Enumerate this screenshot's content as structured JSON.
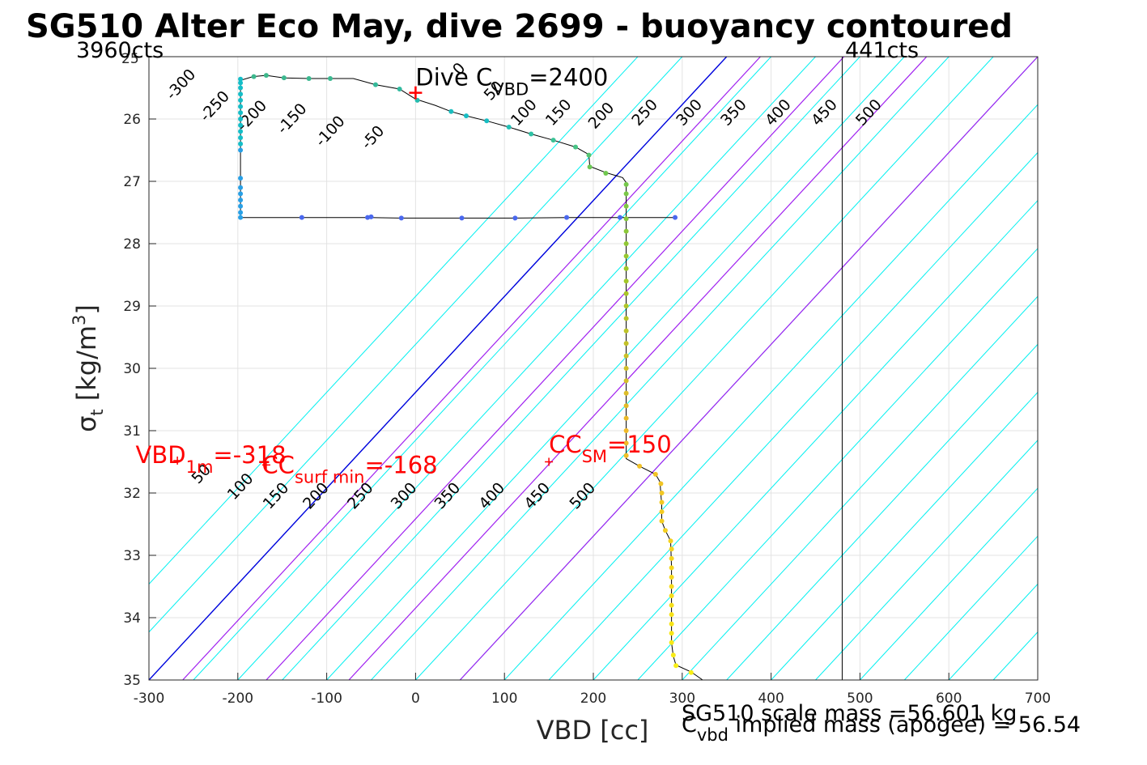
{
  "chart_data": {
    "type": "scatter",
    "title": "SG510 Alter Eco May, dive 2699 - buoyancy contoured",
    "xlabel": "VBD [cc]",
    "ylabel_main": "σ",
    "ylabel_sub": "t",
    "ylabel_units": " [kg/m",
    "ylabel_sup": "3",
    "ylabel_close": "]",
    "xlim": [
      -300,
      700
    ],
    "ylim": [
      35,
      25
    ],
    "y_reversed": true,
    "grid": true,
    "x_ticks": [
      -300,
      -200,
      -100,
      0,
      100,
      200,
      300,
      400,
      500,
      600,
      700
    ],
    "y_ticks": [
      26,
      27,
      28,
      29,
      30,
      31,
      32,
      33,
      34,
      35
    ],
    "y_tick_labels": [
      "26",
      "27",
      "28",
      "29",
      "30",
      "31",
      "32",
      "33",
      "34",
      "35"
    ],
    "y_top_tick_label": "25",
    "contours": {
      "slope_cc_per_unit": 65,
      "anchor_sigma": 35,
      "lines": [
        {
          "v": -400,
          "x_at_anchor": -400
        },
        {
          "v": -350,
          "x_at_anchor": -350
        },
        {
          "v": -300,
          "x_at_anchor": -300
        },
        {
          "v": -250,
          "x_at_anchor": -250
        },
        {
          "v": -200,
          "x_at_anchor": -200
        },
        {
          "v": -150,
          "x_at_anchor": -150
        },
        {
          "v": -100,
          "x_at_anchor": -100
        },
        {
          "v": -50,
          "x_at_anchor": -50
        },
        {
          "v": 0,
          "x_at_anchor": 0
        },
        {
          "v": 50,
          "x_at_anchor": 50
        },
        {
          "v": 100,
          "x_at_anchor": 100
        },
        {
          "v": 150,
          "x_at_anchor": 150
        },
        {
          "v": 200,
          "x_at_anchor": 200
        },
        {
          "v": 250,
          "x_at_anchor": 250
        },
        {
          "v": 300,
          "x_at_anchor": 300
        },
        {
          "v": 350,
          "x_at_anchor": 350
        },
        {
          "v": 400,
          "x_at_anchor": 400
        },
        {
          "v": 450,
          "x_at_anchor": 450
        },
        {
          "v": 500,
          "x_at_anchor": 500
        },
        {
          "v": 550,
          "x_at_anchor": 550
        },
        {
          "v": 600,
          "x_at_anchor": 600
        },
        {
          "v": 650,
          "x_at_anchor": 650
        },
        {
          "v": 700,
          "x_at_anchor": 700
        },
        {
          "v": 750,
          "x_at_anchor": 750
        },
        {
          "v": 800,
          "x_at_anchor": 800
        },
        {
          "v": 850,
          "x_at_anchor": 850
        },
        {
          "v": 900,
          "x_at_anchor": 900
        },
        {
          "v": 950,
          "x_at_anchor": 950
        },
        {
          "v": 1000,
          "x_at_anchor": 1000
        },
        {
          "v": 1050,
          "x_at_anchor": 1050
        },
        {
          "v": 1100,
          "x_at_anchor": 1100
        },
        {
          "v": 1150,
          "x_at_anchor": 1150
        },
        {
          "v": 1200,
          "x_at_anchor": 1200
        }
      ],
      "colors": {
        "normal": "#00f0f0",
        "zero": "#0000dd",
        "highlight": "#a020f0"
      },
      "highlight_x_at_anchor": [
        -262,
        -168,
        -75,
        50
      ]
    },
    "upper_contour_labels": [
      {
        "text": "-300",
        "x": -260,
        "y": 25.5
      },
      {
        "text": "-250",
        "x": -222,
        "y": 25.85
      },
      {
        "text": "-200",
        "x": -180,
        "y": 26.0
      },
      {
        "text": "-150",
        "x": -135,
        "y": 26.05
      },
      {
        "text": "-100",
        "x": -92,
        "y": 26.25
      },
      {
        "text": "-50",
        "x": -44,
        "y": 26.35
      },
      {
        "text": "0",
        "x": 53,
        "y": 25.25
      },
      {
        "text": "50",
        "x": 92,
        "y": 25.6
      },
      {
        "text": "100",
        "x": 126,
        "y": 25.95
      },
      {
        "text": "150",
        "x": 165,
        "y": 25.95
      },
      {
        "text": "200",
        "x": 213,
        "y": 26.0
      },
      {
        "text": "250",
        "x": 262,
        "y": 25.95
      },
      {
        "text": "300",
        "x": 312,
        "y": 25.95
      },
      {
        "text": "350",
        "x": 362,
        "y": 25.95
      },
      {
        "text": "400",
        "x": 412,
        "y": 25.95
      },
      {
        "text": "450",
        "x": 464,
        "y": 25.95
      },
      {
        "text": "500",
        "x": 514,
        "y": 25.95
      }
    ],
    "lower_contour_labels": [
      {
        "text": "50",
        "x": -237,
        "y": 31.75
      },
      {
        "text": "100",
        "x": -193,
        "y": 31.95
      },
      {
        "text": "150",
        "x": -153,
        "y": 32.1
      },
      {
        "text": "200",
        "x": -108,
        "y": 32.1
      },
      {
        "text": "250",
        "x": -58,
        "y": 32.1
      },
      {
        "text": "300",
        "x": -9,
        "y": 32.1
      },
      {
        "text": "350",
        "x": 40,
        "y": 32.1
      },
      {
        "text": "400",
        "x": 90,
        "y": 32.1
      },
      {
        "text": "450",
        "x": 141,
        "y": 32.1
      },
      {
        "text": "500",
        "x": 192,
        "y": 32.1
      }
    ],
    "trace": [
      [
        -197,
        27.58
      ],
      [
        -197,
        26.55
      ],
      [
        -197,
        26.3
      ],
      [
        -197,
        26.0
      ],
      [
        -197,
        25.75
      ],
      [
        -197,
        25.55
      ],
      [
        -197,
        25.38
      ],
      [
        -183,
        25.32
      ],
      [
        -168,
        25.3
      ],
      [
        -148,
        25.34
      ],
      [
        -120,
        25.35
      ],
      [
        -95,
        25.35
      ],
      [
        -70,
        25.35
      ],
      [
        -45,
        25.45
      ],
      [
        -18,
        25.52
      ],
      [
        0,
        25.68
      ],
      [
        22,
        25.78
      ],
      [
        40,
        25.88
      ],
      [
        57,
        25.95
      ],
      [
        80,
        26.03
      ],
      [
        105,
        26.13
      ],
      [
        130,
        26.24
      ],
      [
        155,
        26.34
      ],
      [
        180,
        26.45
      ],
      [
        195,
        26.57
      ],
      [
        196,
        26.76
      ],
      [
        214,
        26.86
      ],
      [
        233,
        26.94
      ],
      [
        237,
        27.02
      ],
      [
        237,
        27.35
      ],
      [
        237,
        27.65
      ],
      [
        237,
        28.0
      ],
      [
        237,
        28.5
      ],
      [
        237,
        29.0
      ],
      [
        237,
        29.5
      ],
      [
        237,
        30.0
      ],
      [
        237,
        30.5
      ],
      [
        237,
        31.0
      ],
      [
        237,
        31.45
      ],
      [
        252,
        31.57
      ],
      [
        270,
        31.7
      ],
      [
        275,
        31.82
      ],
      [
        277,
        32.2
      ],
      [
        277,
        32.45
      ],
      [
        281,
        32.6
      ],
      [
        287,
        32.77
      ],
      [
        288,
        33.2
      ],
      [
        288,
        33.6
      ],
      [
        288,
        34.0
      ],
      [
        288,
        34.4
      ],
      [
        290,
        34.62
      ],
      [
        293,
        34.76
      ],
      [
        310,
        34.87
      ],
      [
        323,
        35.0
      ]
    ],
    "trace_ascent_tail": [
      [
        -197,
        27.58
      ],
      [
        -128,
        27.58
      ],
      [
        -52,
        27.58
      ],
      [
        -17,
        27.59
      ],
      [
        55,
        27.59
      ],
      [
        112,
        27.59
      ],
      [
        171,
        27.58
      ],
      [
        230,
        27.58
      ],
      [
        292,
        27.58
      ]
    ],
    "descent_points": [
      [
        -197,
        27.58
      ],
      [
        -197,
        27.5
      ],
      [
        -197,
        27.4
      ],
      [
        -197,
        27.3
      ],
      [
        -197,
        27.2
      ],
      [
        -197,
        27.1
      ],
      [
        -197,
        26.95
      ],
      [
        -197,
        26.5
      ],
      [
        -197,
        26.4
      ],
      [
        -197,
        26.3
      ],
      [
        -197,
        26.2
      ],
      [
        -197,
        26.1
      ],
      [
        -197,
        26.0
      ],
      [
        -197,
        25.9
      ],
      [
        -197,
        25.8
      ],
      [
        -197,
        25.7
      ],
      [
        -197,
        25.6
      ],
      [
        -197,
        25.5
      ],
      [
        -197,
        25.42
      ],
      [
        -197,
        25.36
      ],
      [
        -182,
        25.32
      ],
      [
        -168,
        25.3
      ],
      [
        -148,
        25.34
      ],
      [
        -120,
        25.35
      ],
      [
        -96,
        25.35
      ],
      [
        -45,
        25.45
      ],
      [
        -18,
        25.52
      ],
      [
        2,
        25.7
      ],
      [
        40,
        25.88
      ],
      [
        57,
        25.95
      ],
      [
        80,
        26.03
      ],
      [
        105,
        26.13
      ],
      [
        130,
        26.24
      ],
      [
        155,
        26.34
      ],
      [
        180,
        26.45
      ],
      [
        195,
        26.58
      ],
      [
        196,
        26.77
      ],
      [
        214,
        26.87
      ],
      [
        237,
        27.05
      ],
      [
        237,
        27.2
      ],
      [
        237,
        27.4
      ],
      [
        237,
        27.6
      ],
      [
        237,
        27.8
      ],
      [
        237,
        28.0
      ],
      [
        237,
        28.2
      ],
      [
        237,
        28.4
      ],
      [
        237,
        28.6
      ],
      [
        237,
        28.8
      ],
      [
        237,
        29.0
      ],
      [
        237,
        29.2
      ],
      [
        237,
        29.4
      ],
      [
        237,
        29.6
      ],
      [
        237,
        29.8
      ],
      [
        237,
        30.0
      ],
      [
        237,
        30.2
      ],
      [
        237,
        30.4
      ],
      [
        237,
        30.6
      ],
      [
        237,
        30.8
      ],
      [
        237,
        31.0
      ],
      [
        237,
        31.2
      ],
      [
        237,
        31.4
      ],
      [
        252,
        31.57
      ],
      [
        270,
        31.7
      ],
      [
        276,
        31.85
      ],
      [
        277,
        32.0
      ],
      [
        277,
        32.15
      ],
      [
        277,
        32.3
      ],
      [
        277,
        32.45
      ],
      [
        281,
        32.6
      ],
      [
        287,
        32.77
      ],
      [
        288,
        32.9
      ],
      [
        288,
        33.05
      ],
      [
        288,
        33.2
      ],
      [
        288,
        33.35
      ],
      [
        288,
        33.5
      ],
      [
        288,
        33.65
      ],
      [
        288,
        33.8
      ],
      [
        288,
        33.95
      ],
      [
        288,
        34.1
      ],
      [
        288,
        34.25
      ],
      [
        288,
        34.4
      ],
      [
        290,
        34.6
      ],
      [
        293,
        34.77
      ],
      [
        310,
        34.88
      ]
    ],
    "ascent_points": [
      [
        -128,
        27.58
      ],
      [
        -54,
        27.58
      ],
      [
        -50,
        27.57
      ],
      [
        -16,
        27.59
      ],
      [
        52,
        27.59
      ],
      [
        112,
        27.59
      ],
      [
        170,
        27.58
      ],
      [
        230,
        27.58
      ],
      [
        292,
        27.58
      ]
    ],
    "vlines": [
      {
        "x": 480,
        "color": "#000000"
      }
    ],
    "markers": [
      {
        "x": 0,
        "y": 25.58,
        "symbol": "+",
        "color": "#ff0000",
        "size": "large"
      },
      {
        "x": 150,
        "y": 31.5,
        "symbol": "+",
        "color": "#ff0000",
        "size": "small"
      },
      {
        "x": -268,
        "y": 31.48,
        "symbol": "+",
        "color": "#ff0000",
        "size": "small"
      },
      {
        "x": -168,
        "y": 31.55,
        "symbol": "+",
        "color": "#ff0000",
        "size": "small"
      }
    ],
    "annotations": {
      "dive_c": {
        "main": "Dive C",
        "sub": "VBD",
        "rest": "=2400",
        "x": 0,
        "y": 25.46
      },
      "cc_sm": {
        "main": "CC",
        "sub": "SM",
        "rest": "=150",
        "x": 150,
        "y": 31.35
      },
      "vbd_1m": {
        "main": "VBD",
        "sub": "1m",
        "rest": "=-318",
        "x": -315,
        "y": 31.52
      },
      "cc_surf": {
        "main": "CC",
        "sub": "surf min",
        "rest": "=-168",
        "x": -173,
        "y": 31.68
      }
    },
    "corner_labels": {
      "left": "3960cts",
      "right": "441cts"
    },
    "footer": {
      "scale_mass": "SG510 scale mass =56.601 kg",
      "cvbd_main": "C",
      "cvbd_sub": "vbd",
      "implied": " implied mass (apogee) = 56.54"
    }
  }
}
